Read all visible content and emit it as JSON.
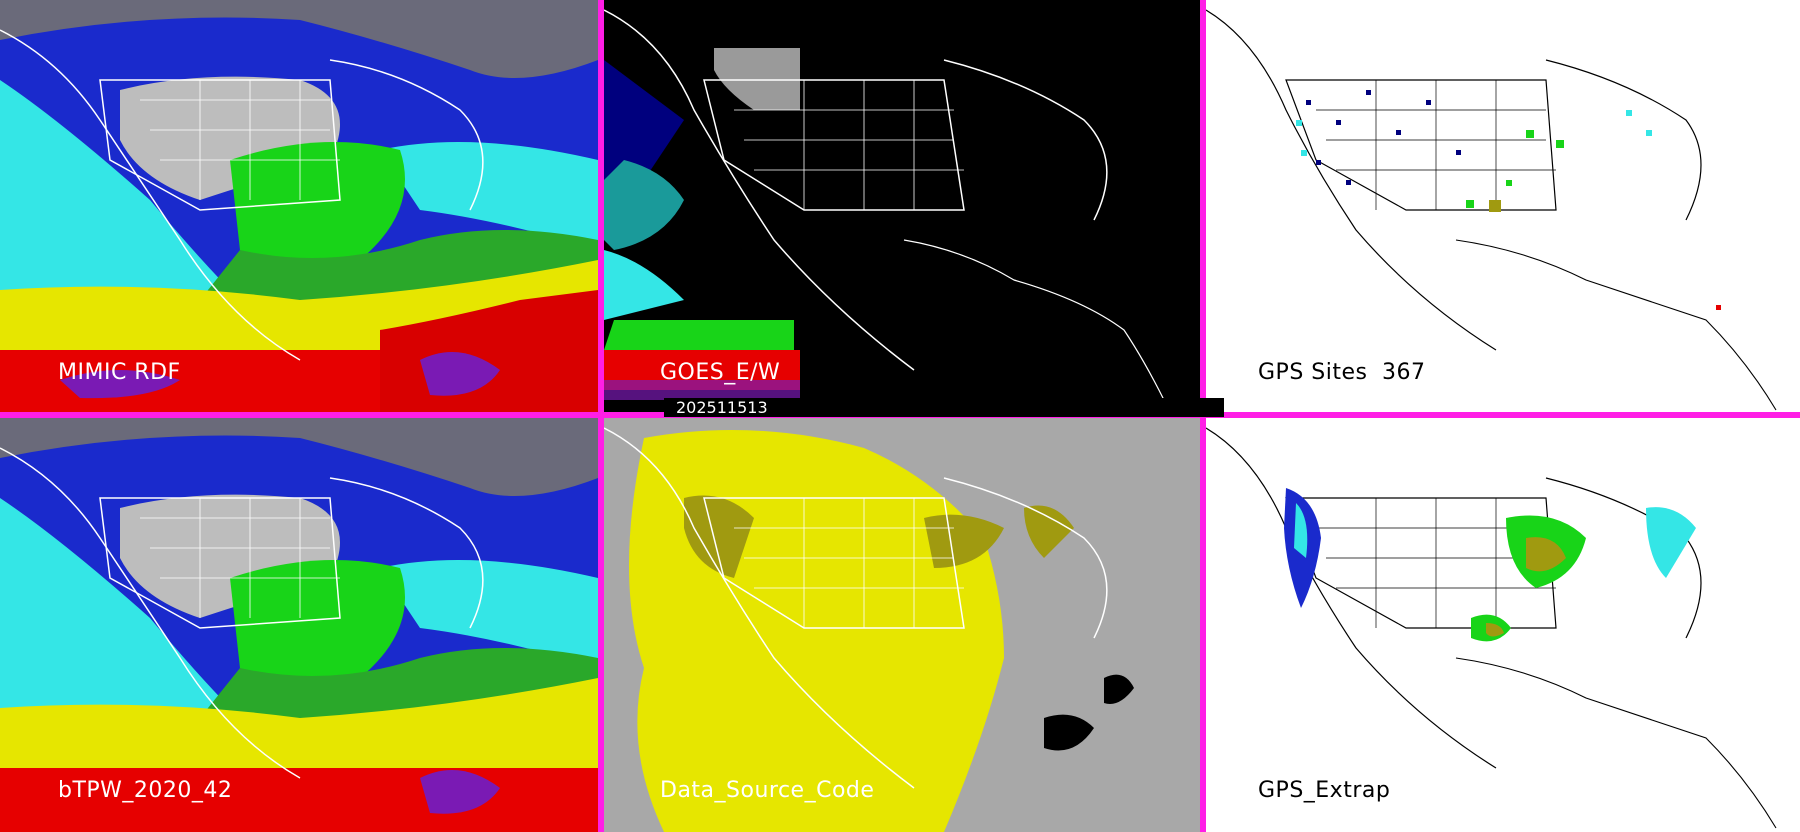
{
  "panels": {
    "p1": {
      "label": "MIMIC RDF"
    },
    "p2": {
      "label": "GOES_E/W"
    },
    "p3": {
      "label": "GPS Sites",
      "count": "367"
    },
    "p4": {
      "label": "bTPW_2020_42"
    },
    "p5": {
      "label": "Data_Source_Code"
    },
    "p6": {
      "label": "GPS_Extrap"
    }
  },
  "timestamp": "202511513",
  "colors": {
    "divider": "#ff1ee6",
    "cyan": "#34e6e6",
    "navy": "#00007e",
    "blue": "#1a2acc",
    "green": "#18d418",
    "yellow": "#e6e600",
    "red": "#e60000",
    "purple": "#7a1ab4",
    "gray": "#c8c8c8",
    "olive": "#a09a10"
  }
}
